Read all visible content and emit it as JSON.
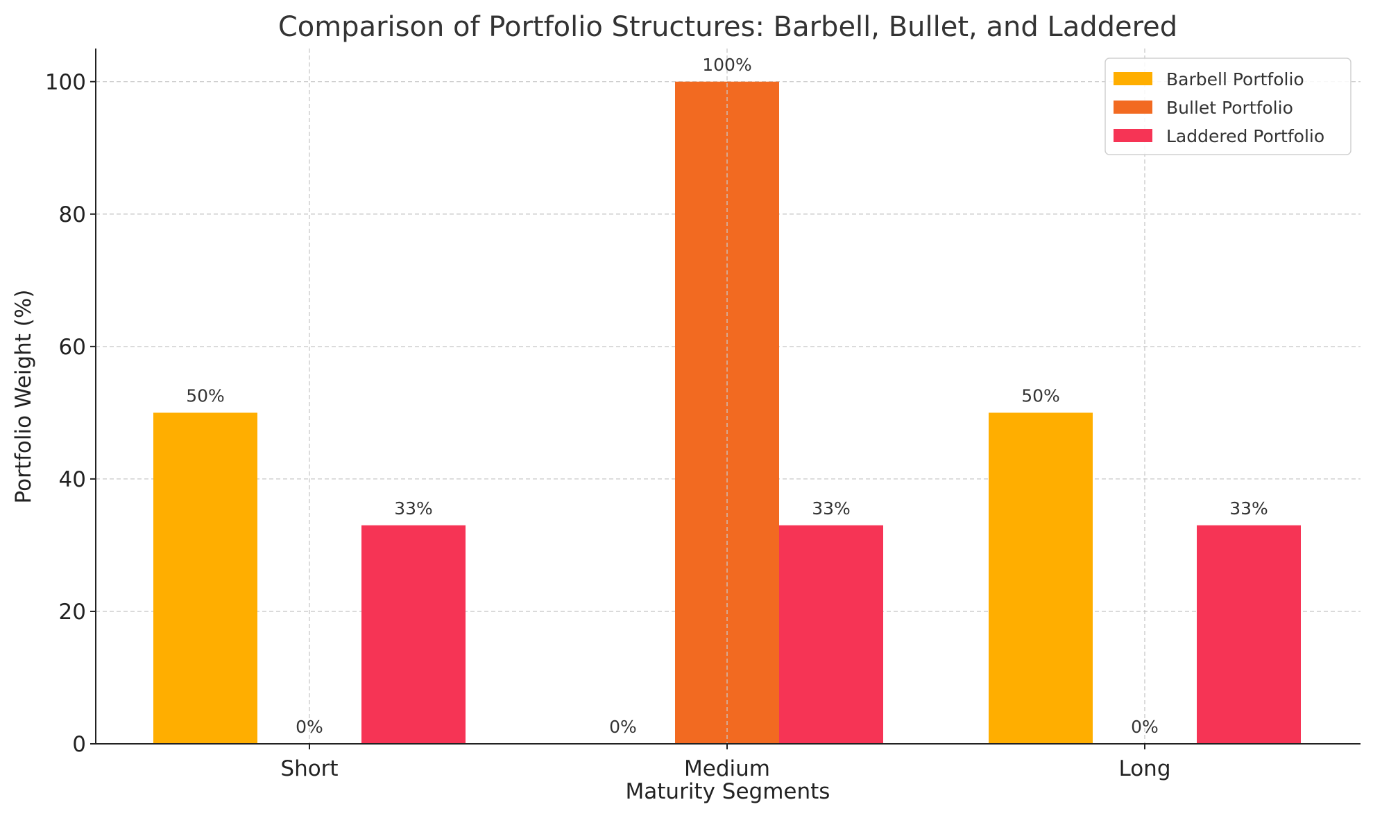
{
  "chart_data": {
    "type": "bar",
    "title": "Comparison of Portfolio Structures: Barbell, Bullet, and Laddered",
    "xlabel": "Maturity Segments",
    "ylabel": "Portfolio Weight (%)",
    "categories": [
      "Short",
      "Medium",
      "Long"
    ],
    "ylim": [
      0,
      105
    ],
    "yticks": [
      0,
      20,
      40,
      60,
      80,
      100
    ],
    "grid": true,
    "legend_position": "top-right",
    "series": [
      {
        "name": "Barbell Portfolio",
        "values": [
          50,
          0,
          50
        ],
        "labels": [
          "50%",
          "0%",
          "50%"
        ],
        "color": "#FFAE00"
      },
      {
        "name": "Bullet Portfolio",
        "values": [
          0,
          100,
          0
        ],
        "labels": [
          "0%",
          "100%",
          "0%"
        ],
        "color": "#F26A21"
      },
      {
        "name": "Laddered Portfolio",
        "values": [
          33,
          33,
          33
        ],
        "labels": [
          "33%",
          "33%",
          "33%"
        ],
        "color": "#F63455"
      }
    ]
  }
}
